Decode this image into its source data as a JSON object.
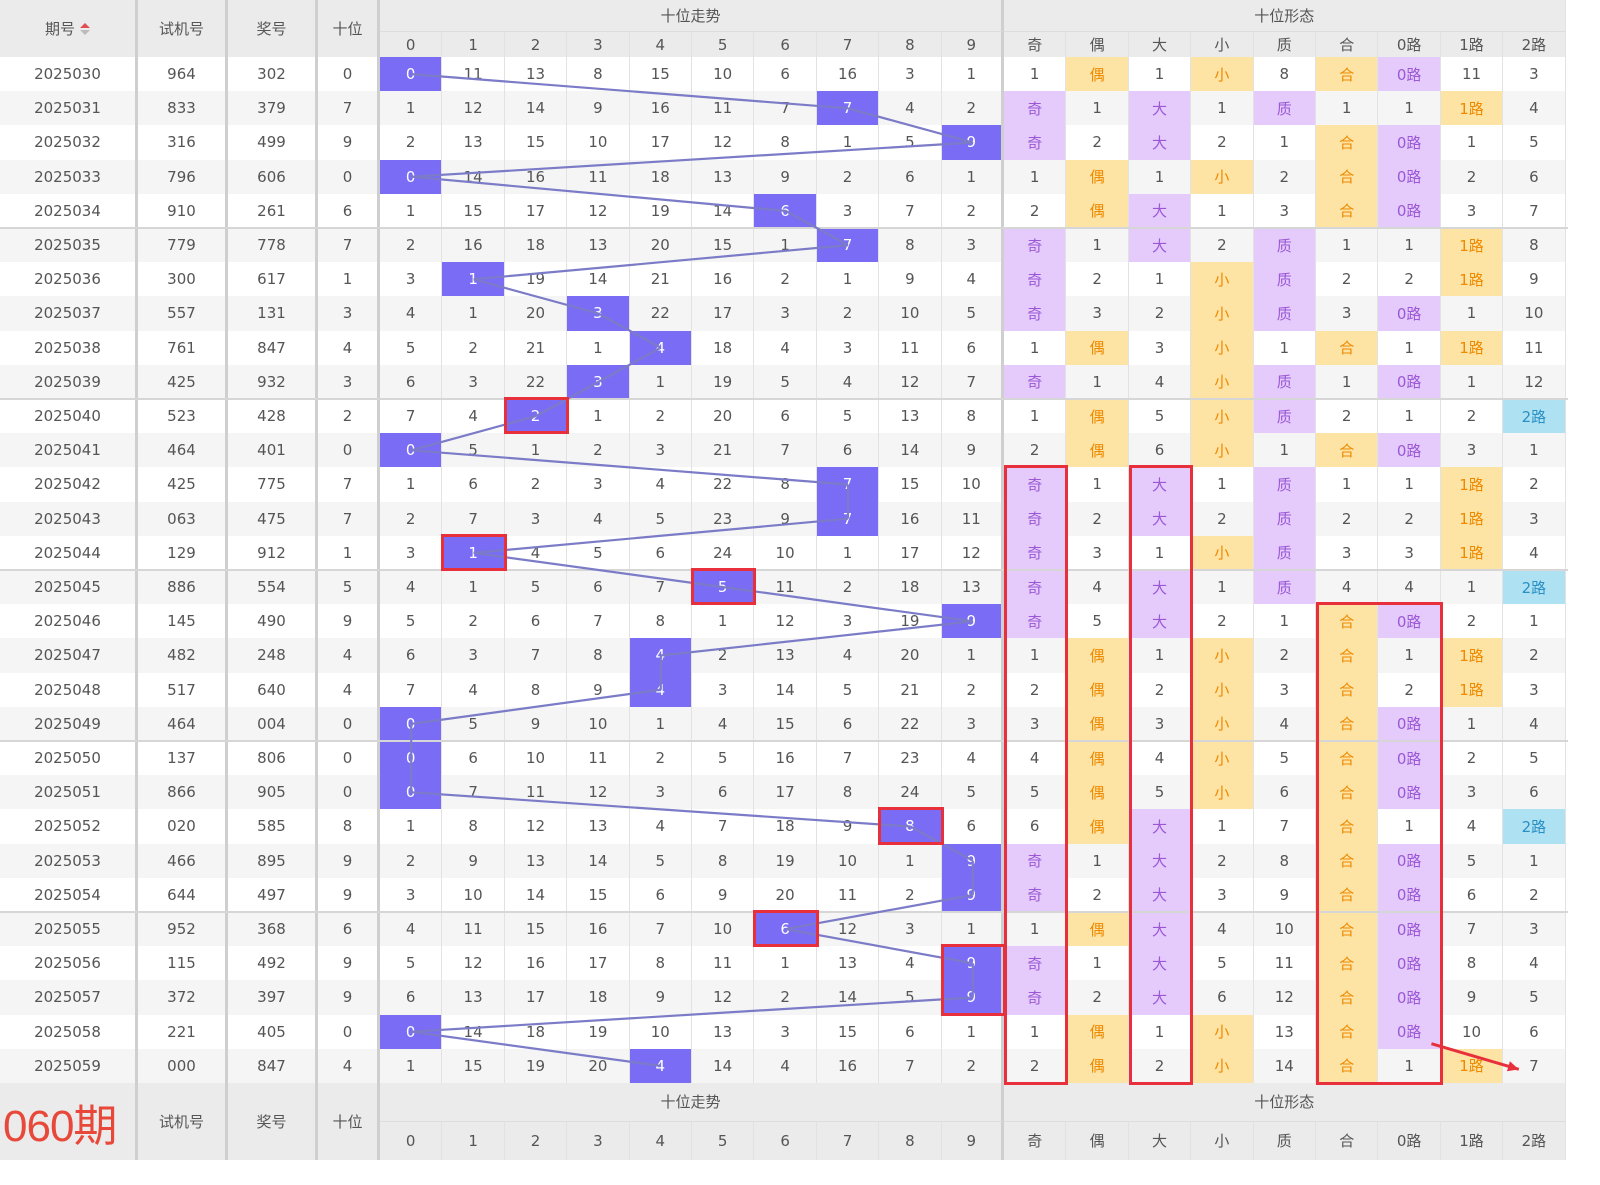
{
  "header": {
    "period": "期号",
    "sort_icon": "sort-up-down-icon",
    "test": "试机号",
    "prize": "奖号",
    "tens": "十位",
    "trend_group": "十位走势",
    "form_group": "十位形态",
    "trend_cols": [
      "0",
      "1",
      "2",
      "3",
      "4",
      "5",
      "6",
      "7",
      "8",
      "9"
    ],
    "form_cols": [
      "奇",
      "偶",
      "大",
      "小",
      "质",
      "合",
      "0路",
      "1路",
      "2路"
    ]
  },
  "footer": {
    "next_period": "060期"
  },
  "colors": {
    "hit": "#7b6cf6",
    "purple_tag": "#e4cbfb",
    "orange_tag": "#fde3a4",
    "blue_tag": "#aee2f3",
    "annotation": "#e8303c",
    "trend_line": "#7b7bc8"
  },
  "rows": [
    {
      "period": "2025030",
      "test": "964",
      "prize": "302",
      "tens": "0",
      "trend": [
        "0",
        "11",
        "13",
        "8",
        "15",
        "10",
        "6",
        "16",
        "3",
        "1"
      ],
      "form": [
        "1",
        "偶",
        "1",
        "小",
        "8",
        "合",
        "0路",
        "11",
        "3"
      ]
    },
    {
      "period": "2025031",
      "test": "833",
      "prize": "379",
      "tens": "7",
      "trend": [
        "1",
        "12",
        "14",
        "9",
        "16",
        "11",
        "7",
        "7",
        "4",
        "2"
      ],
      "form": [
        "奇",
        "1",
        "大",
        "1",
        "质",
        "1",
        "1",
        "1路",
        "4"
      ]
    },
    {
      "period": "2025032",
      "test": "316",
      "prize": "499",
      "tens": "9",
      "trend": [
        "2",
        "13",
        "15",
        "10",
        "17",
        "12",
        "8",
        "1",
        "5",
        "9"
      ],
      "form": [
        "奇",
        "2",
        "大",
        "2",
        "1",
        "合",
        "0路",
        "1",
        "5"
      ]
    },
    {
      "period": "2025033",
      "test": "796",
      "prize": "606",
      "tens": "0",
      "trend": [
        "0",
        "14",
        "16",
        "11",
        "18",
        "13",
        "9",
        "2",
        "6",
        "1"
      ],
      "form": [
        "1",
        "偶",
        "1",
        "小",
        "2",
        "合",
        "0路",
        "2",
        "6"
      ]
    },
    {
      "period": "2025034",
      "test": "910",
      "prize": "261",
      "tens": "6",
      "trend": [
        "1",
        "15",
        "17",
        "12",
        "19",
        "14",
        "6",
        "3",
        "7",
        "2"
      ],
      "form": [
        "2",
        "偶",
        "大",
        "1",
        "3",
        "合",
        "0路",
        "3",
        "7"
      ]
    },
    {
      "period": "2025035",
      "test": "779",
      "prize": "778",
      "tens": "7",
      "trend": [
        "2",
        "16",
        "18",
        "13",
        "20",
        "15",
        "1",
        "7",
        "8",
        "3"
      ],
      "form": [
        "奇",
        "1",
        "大",
        "2",
        "质",
        "1",
        "1",
        "1路",
        "8"
      ]
    },
    {
      "period": "2025036",
      "test": "300",
      "prize": "617",
      "tens": "1",
      "trend": [
        "3",
        "1",
        "19",
        "14",
        "21",
        "16",
        "2",
        "1",
        "9",
        "4"
      ],
      "form": [
        "奇",
        "2",
        "1",
        "小",
        "质",
        "2",
        "2",
        "1路",
        "9"
      ]
    },
    {
      "period": "2025037",
      "test": "557",
      "prize": "131",
      "tens": "3",
      "trend": [
        "4",
        "1",
        "20",
        "3",
        "22",
        "17",
        "3",
        "2",
        "10",
        "5"
      ],
      "form": [
        "奇",
        "3",
        "2",
        "小",
        "质",
        "3",
        "0路",
        "1",
        "10"
      ]
    },
    {
      "period": "2025038",
      "test": "761",
      "prize": "847",
      "tens": "4",
      "trend": [
        "5",
        "2",
        "21",
        "1",
        "4",
        "18",
        "4",
        "3",
        "11",
        "6"
      ],
      "form": [
        "1",
        "偶",
        "3",
        "小",
        "1",
        "合",
        "1",
        "1路",
        "11"
      ]
    },
    {
      "period": "2025039",
      "test": "425",
      "prize": "932",
      "tens": "3",
      "trend": [
        "6",
        "3",
        "22",
        "3",
        "1",
        "19",
        "5",
        "4",
        "12",
        "7"
      ],
      "form": [
        "奇",
        "1",
        "4",
        "小",
        "质",
        "1",
        "0路",
        "1",
        "12"
      ]
    },
    {
      "period": "2025040",
      "test": "523",
      "prize": "428",
      "tens": "2",
      "trend": [
        "7",
        "4",
        "2",
        "1",
        "2",
        "20",
        "6",
        "5",
        "13",
        "8"
      ],
      "form": [
        "1",
        "偶",
        "5",
        "小",
        "质",
        "2",
        "1",
        "2",
        "2路"
      ]
    },
    {
      "period": "2025041",
      "test": "464",
      "prize": "401",
      "tens": "0",
      "trend": [
        "0",
        "5",
        "1",
        "2",
        "3",
        "21",
        "7",
        "6",
        "14",
        "9"
      ],
      "form": [
        "2",
        "偶",
        "6",
        "小",
        "1",
        "合",
        "0路",
        "3",
        "1"
      ]
    },
    {
      "period": "2025042",
      "test": "425",
      "prize": "775",
      "tens": "7",
      "trend": [
        "1",
        "6",
        "2",
        "3",
        "4",
        "22",
        "8",
        "7",
        "15",
        "10"
      ],
      "form": [
        "奇",
        "1",
        "大",
        "1",
        "质",
        "1",
        "1",
        "1路",
        "2"
      ]
    },
    {
      "period": "2025043",
      "test": "063",
      "prize": "475",
      "tens": "7",
      "trend": [
        "2",
        "7",
        "3",
        "4",
        "5",
        "23",
        "9",
        "7",
        "16",
        "11"
      ],
      "form": [
        "奇",
        "2",
        "大",
        "2",
        "质",
        "2",
        "2",
        "1路",
        "3"
      ]
    },
    {
      "period": "2025044",
      "test": "129",
      "prize": "912",
      "tens": "1",
      "trend": [
        "3",
        "1",
        "4",
        "5",
        "6",
        "24",
        "10",
        "1",
        "17",
        "12"
      ],
      "form": [
        "奇",
        "3",
        "1",
        "小",
        "质",
        "3",
        "3",
        "1路",
        "4"
      ]
    },
    {
      "period": "2025045",
      "test": "886",
      "prize": "554",
      "tens": "5",
      "trend": [
        "4",
        "1",
        "5",
        "6",
        "7",
        "5",
        "11",
        "2",
        "18",
        "13"
      ],
      "form": [
        "奇",
        "4",
        "大",
        "1",
        "质",
        "4",
        "4",
        "1",
        "2路"
      ]
    },
    {
      "period": "2025046",
      "test": "145",
      "prize": "490",
      "tens": "9",
      "trend": [
        "5",
        "2",
        "6",
        "7",
        "8",
        "1",
        "12",
        "3",
        "19",
        "9"
      ],
      "form": [
        "奇",
        "5",
        "大",
        "2",
        "1",
        "合",
        "0路",
        "2",
        "1"
      ]
    },
    {
      "period": "2025047",
      "test": "482",
      "prize": "248",
      "tens": "4",
      "trend": [
        "6",
        "3",
        "7",
        "8",
        "4",
        "2",
        "13",
        "4",
        "20",
        "1"
      ],
      "form": [
        "1",
        "偶",
        "1",
        "小",
        "2",
        "合",
        "1",
        "1路",
        "2"
      ]
    },
    {
      "period": "2025048",
      "test": "517",
      "prize": "640",
      "tens": "4",
      "trend": [
        "7",
        "4",
        "8",
        "9",
        "4",
        "3",
        "14",
        "5",
        "21",
        "2"
      ],
      "form": [
        "2",
        "偶",
        "2",
        "小",
        "3",
        "合",
        "2",
        "1路",
        "3"
      ]
    },
    {
      "period": "2025049",
      "test": "464",
      "prize": "004",
      "tens": "0",
      "trend": [
        "0",
        "5",
        "9",
        "10",
        "1",
        "4",
        "15",
        "6",
        "22",
        "3"
      ],
      "form": [
        "3",
        "偶",
        "3",
        "小",
        "4",
        "合",
        "0路",
        "1",
        "4"
      ]
    },
    {
      "period": "2025050",
      "test": "137",
      "prize": "806",
      "tens": "0",
      "trend": [
        "0",
        "6",
        "10",
        "11",
        "2",
        "5",
        "16",
        "7",
        "23",
        "4"
      ],
      "form": [
        "4",
        "偶",
        "4",
        "小",
        "5",
        "合",
        "0路",
        "2",
        "5"
      ]
    },
    {
      "period": "2025051",
      "test": "866",
      "prize": "905",
      "tens": "0",
      "trend": [
        "0",
        "7",
        "11",
        "12",
        "3",
        "6",
        "17",
        "8",
        "24",
        "5"
      ],
      "form": [
        "5",
        "偶",
        "5",
        "小",
        "6",
        "合",
        "0路",
        "3",
        "6"
      ]
    },
    {
      "period": "2025052",
      "test": "020",
      "prize": "585",
      "tens": "8",
      "trend": [
        "1",
        "8",
        "12",
        "13",
        "4",
        "7",
        "18",
        "9",
        "8",
        "6"
      ],
      "form": [
        "6",
        "偶",
        "大",
        "1",
        "7",
        "合",
        "1",
        "4",
        "2路"
      ]
    },
    {
      "period": "2025053",
      "test": "466",
      "prize": "895",
      "tens": "9",
      "trend": [
        "2",
        "9",
        "13",
        "14",
        "5",
        "8",
        "19",
        "10",
        "1",
        "9"
      ],
      "form": [
        "奇",
        "1",
        "大",
        "2",
        "8",
        "合",
        "0路",
        "5",
        "1"
      ]
    },
    {
      "period": "2025054",
      "test": "644",
      "prize": "497",
      "tens": "9",
      "trend": [
        "3",
        "10",
        "14",
        "15",
        "6",
        "9",
        "20",
        "11",
        "2",
        "9"
      ],
      "form": [
        "奇",
        "2",
        "大",
        "3",
        "9",
        "合",
        "0路",
        "6",
        "2"
      ]
    },
    {
      "period": "2025055",
      "test": "952",
      "prize": "368",
      "tens": "6",
      "trend": [
        "4",
        "11",
        "15",
        "16",
        "7",
        "10",
        "6",
        "12",
        "3",
        "1"
      ],
      "form": [
        "1",
        "偶",
        "大",
        "4",
        "10",
        "合",
        "0路",
        "7",
        "3"
      ]
    },
    {
      "period": "2025056",
      "test": "115",
      "prize": "492",
      "tens": "9",
      "trend": [
        "5",
        "12",
        "16",
        "17",
        "8",
        "11",
        "1",
        "13",
        "4",
        "9"
      ],
      "form": [
        "奇",
        "1",
        "大",
        "5",
        "11",
        "合",
        "0路",
        "8",
        "4"
      ]
    },
    {
      "period": "2025057",
      "test": "372",
      "prize": "397",
      "tens": "9",
      "trend": [
        "6",
        "13",
        "17",
        "18",
        "9",
        "12",
        "2",
        "14",
        "5",
        "9"
      ],
      "form": [
        "奇",
        "2",
        "大",
        "6",
        "12",
        "合",
        "0路",
        "9",
        "5"
      ]
    },
    {
      "period": "2025058",
      "test": "221",
      "prize": "405",
      "tens": "0",
      "trend": [
        "0",
        "14",
        "18",
        "19",
        "10",
        "13",
        "3",
        "15",
        "6",
        "1"
      ],
      "form": [
        "1",
        "偶",
        "1",
        "小",
        "13",
        "合",
        "0路",
        "10",
        "6"
      ]
    },
    {
      "period": "2025059",
      "test": "000",
      "prize": "847",
      "tens": "4",
      "trend": [
        "1",
        "15",
        "19",
        "20",
        "4",
        "14",
        "4",
        "16",
        "7",
        "2"
      ],
      "form": [
        "2",
        "偶",
        "2",
        "小",
        "14",
        "合",
        "1",
        "1路",
        "7"
      ]
    }
  ],
  "annotations": {
    "boxed_trend_cells": [
      {
        "period": "2025040",
        "digit": "2"
      },
      {
        "period": "2025044",
        "digit": "1"
      },
      {
        "period": "2025045",
        "digit": "5"
      },
      {
        "period": "2025052",
        "digit": "8"
      },
      {
        "period": "2025055",
        "digit": "6"
      },
      {
        "period_from": "2025056",
        "period_to": "2025057",
        "digit": "9"
      }
    ],
    "boxed_form_columns": [
      {
        "columns": [
          "奇"
        ],
        "period_from": "2025042",
        "period_to": "2025059"
      },
      {
        "columns": [
          "大"
        ],
        "period_from": "2025042",
        "period_to": "2025059"
      },
      {
        "columns": [
          "合",
          "0路"
        ],
        "period_from": "2025046",
        "period_to": "2025059"
      }
    ],
    "arrow": {
      "from_column": "0路",
      "to_column": "2路",
      "period": "2025059"
    }
  }
}
